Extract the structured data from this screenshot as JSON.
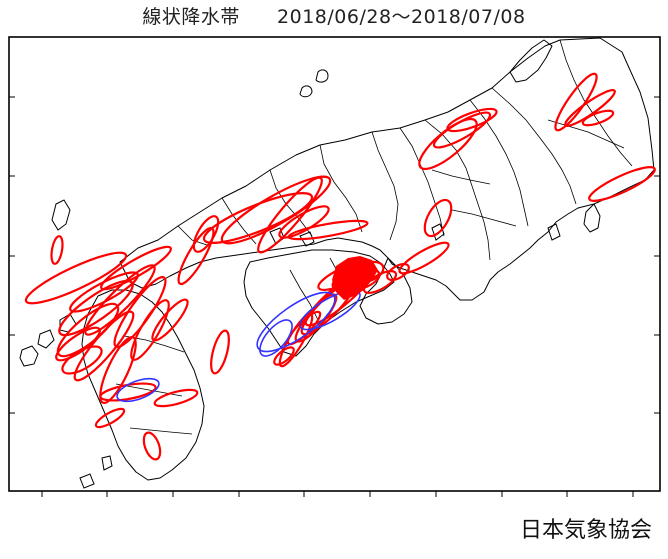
{
  "title": {
    "text": "線状降水帯",
    "period": "2018/06/28～2018/07/08"
  },
  "credit": "日本気象協会",
  "colors": {
    "frame": "#000000",
    "coast": "#000000",
    "red_band": "#ff0000",
    "blue_band": "#3333ff",
    "background": "#ffffff"
  },
  "legend": [],
  "map_features": {
    "region": "western Japan (Kyushu, Shikoku, Chugoku, Kinki, Chubu)",
    "red_band_count": 46,
    "blue_band_count": 4
  }
}
